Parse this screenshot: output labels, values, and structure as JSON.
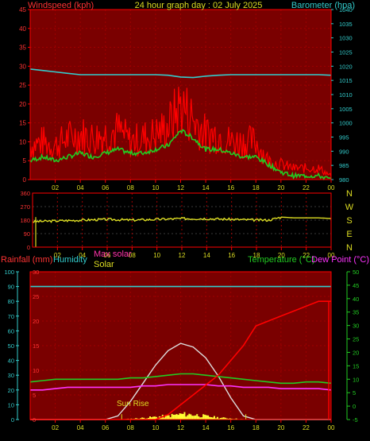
{
  "header": {
    "left_label": "Windspeed (kph)",
    "title": "24 hour graph day : 02 July 2025",
    "right_label": "Barometer (hpa)"
  },
  "colors": {
    "wind": "#ff0000",
    "gust_avg": "#22cc22",
    "barometer": "#33cccc",
    "direction": "#dddd22",
    "rain": "#ff0000",
    "humidity": "#33cccc",
    "temperature": "#22cc22",
    "dewpoint": "#ff33ff",
    "max_solar": "#dddddd",
    "solar": "#ffff33",
    "plot_bg": "#7a0000",
    "frame": "#ff0000",
    "grid": "#a00000"
  },
  "time_axis": [
    "02",
    "04",
    "06",
    "08",
    "10",
    "12",
    "14",
    "16",
    "18",
    "20",
    "22",
    "00"
  ],
  "chart_data": [
    {
      "type": "line",
      "id": "wind_baro",
      "xlabel": "",
      "ylabel": "Windspeed (kph)",
      "y2label": "Barometer (hpa)",
      "ylim": [
        0,
        45
      ],
      "y2lim": [
        980,
        1040
      ],
      "yticks": [
        "0",
        "5",
        "10",
        "15",
        "20",
        "25",
        "30",
        "35",
        "40",
        "45"
      ],
      "y2ticks": [
        "980",
        "985",
        "990",
        "995",
        "1000",
        "1005",
        "1010",
        "1015",
        "1020",
        "1025",
        "1030",
        "1035",
        "1040"
      ],
      "x_hours": [
        0,
        1,
        2,
        3,
        4,
        5,
        6,
        7,
        8,
        9,
        10,
        11,
        12,
        13,
        14,
        15,
        16,
        17,
        18,
        19,
        20,
        21,
        22,
        23,
        24
      ],
      "series": [
        {
          "name": "Windspeed (kph)",
          "values": [
            9,
            10,
            9,
            11,
            12,
            11,
            12,
            13,
            10,
            11,
            12,
            14,
            20,
            16,
            12,
            12,
            10,
            10,
            10,
            5,
            4,
            3,
            3,
            3,
            1
          ]
        },
        {
          "name": "Barometer (hpa)",
          "values": [
            1019,
            1018.5,
            1018,
            1017.5,
            1017,
            1017,
            1017,
            1017,
            1017,
            1017,
            1017,
            1016.8,
            1016.2,
            1016,
            1016.5,
            1016.8,
            1017,
            1017,
            1017,
            1017,
            1017,
            1017,
            1017,
            1017,
            1016.8
          ]
        }
      ],
      "avg_values": [
        5,
        6,
        5,
        6,
        7,
        6,
        7,
        8,
        7,
        7,
        8,
        9,
        13,
        11,
        8,
        8,
        7,
        6,
        6,
        4,
        2,
        1,
        1,
        1,
        0
      ]
    },
    {
      "type": "line",
      "id": "direction",
      "ylim": [
        0,
        360
      ],
      "yticks": [
        "0",
        "90",
        "180",
        "270",
        "360"
      ],
      "compass": [
        "N",
        "W",
        "S",
        "E",
        "N"
      ],
      "x_hours": [
        0,
        2,
        4,
        6,
        8,
        10,
        12,
        14,
        16,
        18,
        19,
        20,
        21,
        22,
        23,
        24
      ],
      "values": [
        170,
        175,
        180,
        185,
        180,
        185,
        190,
        190,
        185,
        180,
        180,
        200,
        195,
        195,
        195,
        190
      ]
    },
    {
      "type": "line",
      "id": "rain_temp",
      "labels": {
        "rainfall": "Rainfall (mm)",
        "humidity": "Humidity",
        "max_solar": "Max solar",
        "solar": "Solar",
        "temperature": "Temperature (°C)",
        "dewpoint": "Dew Point (°C)",
        "sunrise": "Sun Rise"
      },
      "humidity_ylim": [
        0,
        100
      ],
      "humidity_ticks": [
        "0",
        "10",
        "20",
        "30",
        "40",
        "50",
        "60",
        "70",
        "80",
        "90",
        "100"
      ],
      "rain_ylim": [
        0,
        30
      ],
      "rain_ticks": [
        "0",
        "5",
        "10",
        "15",
        "20",
        "25",
        "30"
      ],
      "temp_ylim": [
        -5,
        50
      ],
      "temp_ticks": [
        "-5",
        "0",
        "5",
        "10",
        "15",
        "20",
        "25",
        "30",
        "35",
        "40",
        "45",
        "50"
      ],
      "x_hours": [
        0,
        1,
        2,
        3,
        4,
        5,
        6,
        7,
        8,
        9,
        10,
        11,
        12,
        13,
        14,
        15,
        16,
        17,
        18,
        19,
        20,
        21,
        22,
        23,
        24
      ],
      "rainfall": [
        0,
        0,
        0,
        0,
        0,
        0,
        0,
        0,
        0,
        0,
        0,
        1,
        3,
        5,
        7,
        9,
        12,
        15,
        19,
        20,
        21,
        22,
        23,
        24,
        24
      ],
      "humidity": [
        90,
        90,
        90,
        90,
        90,
        90,
        90,
        90,
        90,
        90,
        90,
        90,
        90,
        90,
        90,
        90,
        90,
        90,
        90,
        90,
        90,
        90,
        90,
        90,
        90
      ],
      "temperature": [
        9,
        9.5,
        10,
        10,
        10,
        10,
        10,
        10,
        10.5,
        10.5,
        11,
        11.5,
        12,
        12,
        11.5,
        11,
        10.5,
        10,
        9.5,
        9,
        8.5,
        8.5,
        9,
        9,
        8.5
      ],
      "dewpoint": [
        6,
        6,
        6.5,
        7,
        7,
        7,
        7,
        7,
        7,
        7.5,
        7.5,
        8,
        8,
        8,
        8,
        7.5,
        7.5,
        7,
        7,
        7,
        6.5,
        6.5,
        6.5,
        6.5,
        6
      ],
      "max_solar": [
        0,
        0,
        0,
        0,
        0,
        0,
        0,
        0.5,
        2.5,
        5,
        7.5,
        9.5,
        10.5,
        10,
        8.5,
        6,
        3,
        0.5,
        0,
        0,
        0,
        0,
        0,
        0,
        0
      ],
      "solar": [
        0,
        0,
        0,
        0,
        0,
        0,
        0,
        0,
        0.3,
        0.6,
        1.0,
        1.4,
        2.0,
        1.8,
        1.2,
        0.7,
        0.4,
        0.1,
        0,
        0,
        0,
        0,
        0,
        0,
        0
      ]
    }
  ]
}
